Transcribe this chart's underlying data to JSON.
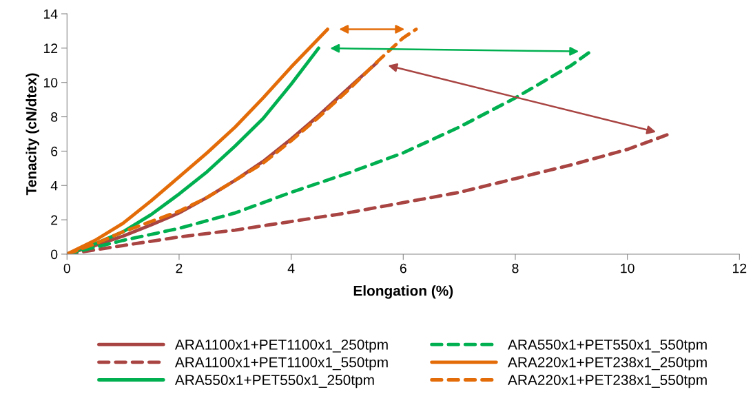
{
  "chart_data": {
    "type": "line",
    "xlabel": "Elongation (%)",
    "ylabel": "Tenacity (cN/dtex)",
    "xlim": [
      0,
      12
    ],
    "xticks": [
      0,
      2,
      4,
      6,
      8,
      10,
      12
    ],
    "ylim": [
      0,
      14
    ],
    "yticks": [
      0,
      2,
      4,
      6,
      8,
      10,
      12,
      14
    ],
    "grid": false,
    "legend": "bottom",
    "marker": "none",
    "series": [
      {
        "name": "ARA1100x1+PET1100x1_250tpm",
        "color": "#a84442",
        "line_style": "solid",
        "x": [
          0,
          0.5,
          1,
          1.5,
          2,
          2.5,
          3,
          3.5,
          4,
          4.5,
          5,
          5.53
        ],
        "values": [
          0,
          0.5,
          1.05,
          1.7,
          2.4,
          3.3,
          4.3,
          5.4,
          6.7,
          8.1,
          9.6,
          11.15
        ]
      },
      {
        "name": "ARA1100x1+PET1100x1_550tpm",
        "color": "#a84442",
        "line_style": "dashed",
        "x": [
          0,
          1,
          2,
          3,
          4,
          5,
          6,
          7,
          8,
          9,
          10,
          10.71
        ],
        "values": [
          0,
          0.5,
          1.0,
          1.4,
          1.9,
          2.4,
          3.0,
          3.6,
          4.4,
          5.2,
          6.1,
          6.95
        ]
      },
      {
        "name": "ARA550x1+PET550x1_250tpm",
        "color": "#00b050",
        "line_style": "solid",
        "x": [
          0,
          0.5,
          1,
          1.5,
          2,
          2.5,
          3,
          3.5,
          4,
          4.49
        ],
        "values": [
          0,
          0.6,
          1.3,
          2.3,
          3.5,
          4.8,
          6.3,
          7.9,
          9.9,
          12.0
        ]
      },
      {
        "name": "ARA550x1+PET550x1_550tpm",
        "color": "#00b050",
        "line_style": "dashed",
        "x": [
          0,
          1,
          2,
          3,
          4,
          5,
          6,
          7,
          8,
          9,
          9.34
        ],
        "values": [
          0,
          0.8,
          1.5,
          2.4,
          3.6,
          4.7,
          5.9,
          7.4,
          9.1,
          11.0,
          11.8
        ]
      },
      {
        "name": "ARA220x1+PET238x1_250tpm",
        "color": "#e36c09",
        "line_style": "solid",
        "x": [
          0,
          0.5,
          1,
          1.5,
          2,
          2.5,
          3,
          3.5,
          4,
          4.65
        ],
        "values": [
          0,
          0.8,
          1.8,
          3.1,
          4.5,
          5.9,
          7.4,
          9.1,
          10.9,
          13.1
        ]
      },
      {
        "name": "ARA220x1+PET238x1_550tpm",
        "color": "#e36c09",
        "line_style": "dashed",
        "x": [
          0,
          0.5,
          1,
          1.5,
          2,
          2.5,
          3,
          3.5,
          4,
          4.5,
          5,
          5.5,
          6,
          6.23
        ],
        "values": [
          0,
          0.6,
          1.3,
          1.9,
          2.5,
          3.3,
          4.3,
          5.3,
          6.6,
          8.0,
          9.5,
          11.1,
          12.6,
          13.1
        ]
      }
    ]
  }
}
